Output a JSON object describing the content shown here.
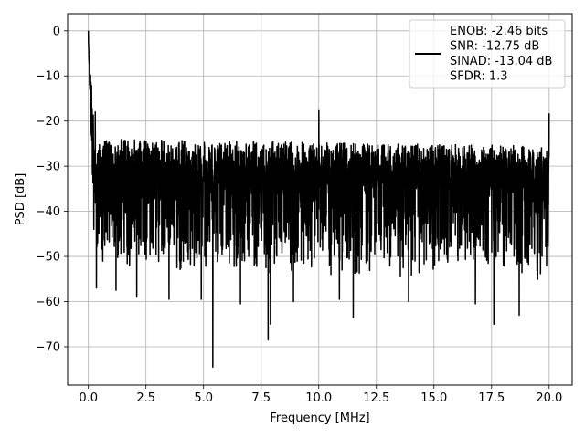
{
  "chart_data": {
    "type": "line",
    "title": "",
    "xlabel": "Frequency [MHz]",
    "ylabel": "PSD [dB]",
    "xlim": [
      -0.9,
      21.0
    ],
    "ylim": [
      -78.5,
      3.8
    ],
    "xticks": [
      0.0,
      2.5,
      5.0,
      7.5,
      10.0,
      12.5,
      15.0,
      17.5,
      20.0
    ],
    "xtick_labels": [
      "0.0",
      "2.5",
      "5.0",
      "7.5",
      "10.0",
      "12.5",
      "15.0",
      "17.5",
      "20.0"
    ],
    "yticks": [
      0,
      -10,
      -20,
      -30,
      -40,
      -50,
      -60,
      -70
    ],
    "ytick_labels": [
      "0",
      "−10",
      "−20",
      "−30",
      "−40",
      "−50",
      "−60",
      "−70"
    ],
    "grid": true,
    "legend_position": "top-right",
    "series": [
      {
        "name": "ENOB: -2.46 bits\nSNR: -12.75 dB\nSINAD: -13.04 dB\nSFDR: 1.3",
        "legend_lines": [
          "ENOB: -2.46 bits",
          "SNR: -12.75 dB",
          "SINAD: -13.04 dB",
          "SFDR: 1.3"
        ],
        "color": "#000000",
        "x_range": [
          0.0,
          20.0
        ],
        "noise_band_db": [
          -50,
          -22
        ],
        "spikes": [
          {
            "x": 0.0,
            "y": 0.0
          },
          {
            "x": 0.05,
            "y": -12.0
          },
          {
            "x": 0.3,
            "y": -18.0
          },
          {
            "x": 10.0,
            "y": -17.5
          },
          {
            "x": 20.0,
            "y": -18.3
          },
          {
            "x": 0.35,
            "y": -57.0
          },
          {
            "x": 1.2,
            "y": -57.5
          },
          {
            "x": 2.1,
            "y": -59.0
          },
          {
            "x": 3.5,
            "y": -59.5
          },
          {
            "x": 4.9,
            "y": -59.5
          },
          {
            "x": 5.4,
            "y": -74.5
          },
          {
            "x": 6.6,
            "y": -60.5
          },
          {
            "x": 7.8,
            "y": -68.5
          },
          {
            "x": 7.9,
            "y": -65.0
          },
          {
            "x": 8.9,
            "y": -60.0
          },
          {
            "x": 10.9,
            "y": -59.5
          },
          {
            "x": 11.5,
            "y": -63.5
          },
          {
            "x": 13.9,
            "y": -60.0
          },
          {
            "x": 16.8,
            "y": -60.5
          },
          {
            "x": 17.6,
            "y": -65.0
          },
          {
            "x": 18.7,
            "y": -63.0
          }
        ]
      }
    ]
  }
}
